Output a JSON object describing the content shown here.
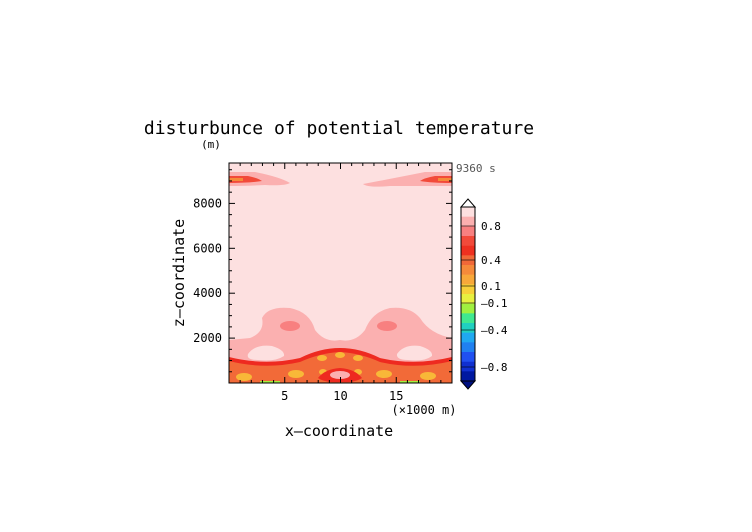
{
  "chart_data": {
    "type": "heatmap",
    "title": "disturbunce of potential temperature",
    "y_unit_label": "(m)",
    "time_label": "9360 s",
    "xlabel": "x—coordinate",
    "ylabel": "z—coordinate",
    "x_unit_label": "(×1000 m)",
    "xlim": [
      0,
      20
    ],
    "ylim": [
      0,
      9800
    ],
    "x_ticks": [
      5,
      10,
      15
    ],
    "x_tick_labels": [
      "5",
      "10",
      "15"
    ],
    "y_ticks": [
      2000,
      4000,
      6000,
      8000
    ],
    "y_tick_labels": [
      "2000",
      "4000",
      "6000",
      "8000"
    ],
    "colorbar": {
      "labels": [
        "0.8",
        "0.4",
        "0.1",
        "—0.1",
        "—0.4",
        "—0.8"
      ],
      "colors": [
        "#fde0e0",
        "#fbb0b0",
        "#f88080",
        "#f24a3a",
        "#ee3020",
        "#f06838",
        "#f58a3a",
        "#f8a83a",
        "#f8d03a",
        "#e8f040",
        "#a0f040",
        "#40e890",
        "#20d0c0",
        "#20a8f0",
        "#2080f0",
        "#2050f0",
        "#1030d0",
        "#0018a0"
      ]
    },
    "regions": [
      {
        "level": "0.8 to 1.0",
        "color": "#fde0e0",
        "area": "background above 2000 m"
      },
      {
        "level": "0.6 to 0.8",
        "color": "#fbb0b0",
        "area": "wavy band 1000-2200 m; blobs at x=3 and x=16, z=2600"
      },
      {
        "level": "0.4 to 0.6",
        "color": "#ee2a20",
        "area": "thin band near 1000-1300 m"
      },
      {
        "level": "0.1 to 0.4",
        "color": "#f26a38",
        "area": "surface layer 0-1000 m"
      },
      {
        "level": "0.0 to 0.1",
        "color": "#f8b838",
        "area": "cells near surface"
      },
      {
        "level": "0.6 to 1.0",
        "color": "#f24a3a",
        "area": "top corners near 9200 m"
      }
    ]
  }
}
